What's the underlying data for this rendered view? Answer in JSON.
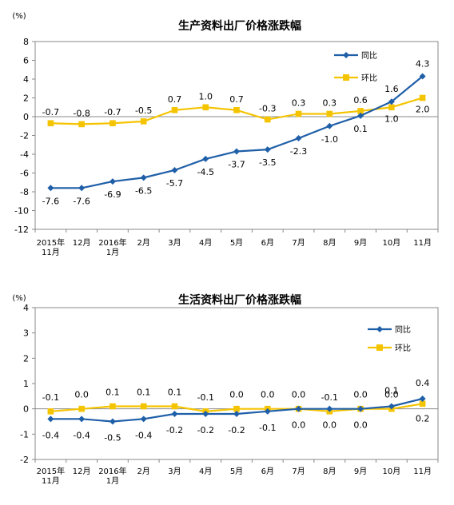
{
  "chart_data": [
    {
      "type": "line",
      "title": "生产资料出厂价格涨跌幅",
      "ylabel": "(%)",
      "ylim": [
        -12,
        8
      ],
      "yticks": [
        8,
        6,
        4,
        2,
        0,
        -2,
        -4,
        -6,
        -8,
        -10,
        -12
      ],
      "categories": [
        [
          "2015年",
          "11月"
        ],
        [
          "12月"
        ],
        [
          "2016年",
          "1月"
        ],
        [
          "2月"
        ],
        [
          "3月"
        ],
        [
          "4月"
        ],
        [
          "5月"
        ],
        [
          "6月"
        ],
        [
          "7月"
        ],
        [
          "8月"
        ],
        [
          "9月"
        ],
        [
          "10月"
        ],
        [
          "11月"
        ]
      ],
      "series": [
        {
          "name": "同比",
          "color": "#1f5fa8",
          "marker": "diamond",
          "values": [
            -7.6,
            -7.6,
            -6.9,
            -6.5,
            -5.7,
            -4.5,
            -3.7,
            -3.5,
            -2.3,
            -1.0,
            0.1,
            1.6,
            4.3
          ],
          "labels": [
            "-7.6",
            "-7.6",
            "-6.9",
            "-6.5",
            "-5.7",
            "-4.5",
            "-3.7",
            "-3.5",
            "-2.3",
            "-1.0",
            "0.1",
            "1.6",
            "4.3"
          ]
        },
        {
          "name": "环比",
          "color": "#f5c400",
          "marker": "square",
          "values": [
            -0.7,
            -0.8,
            -0.7,
            -0.5,
            0.7,
            1.0,
            0.7,
            -0.3,
            0.3,
            0.3,
            0.6,
            1.0,
            2.0
          ],
          "labels": [
            "-0.7",
            "-0.8",
            "-0.7",
            "-0.5",
            "0.7",
            "1.0",
            "0.7",
            "-0.3",
            "0.3",
            "0.3",
            "0.6",
            "1.0",
            "2.0"
          ]
        }
      ],
      "legend": "top-right",
      "grid": false
    },
    {
      "type": "line",
      "title": "生活资料出厂价格涨跌幅",
      "ylabel": "(%)",
      "ylim": [
        -2,
        4
      ],
      "yticks": [
        4,
        3,
        2,
        1,
        0,
        -1,
        -2
      ],
      "categories": [
        [
          "2015年",
          "11月"
        ],
        [
          "12月"
        ],
        [
          "2016年",
          "1月"
        ],
        [
          "2月"
        ],
        [
          "3月"
        ],
        [
          "4月"
        ],
        [
          "5月"
        ],
        [
          "6月"
        ],
        [
          "7月"
        ],
        [
          "8月"
        ],
        [
          "9月"
        ],
        [
          "10月"
        ],
        [
          "11月"
        ]
      ],
      "series": [
        {
          "name": "同比",
          "color": "#1f5fa8",
          "marker": "diamond",
          "values": [
            -0.4,
            -0.4,
            -0.5,
            -0.4,
            -0.2,
            -0.2,
            -0.2,
            -0.1,
            0.0,
            0.0,
            0.0,
            0.1,
            0.4
          ],
          "labels": [
            "-0.4",
            "-0.4",
            "-0.5",
            "-0.4",
            "-0.2",
            "-0.2",
            "-0.2",
            "-0.1",
            "0.0",
            "0.0",
            "0.0",
            "0.1",
            "0.4"
          ]
        },
        {
          "name": "环比",
          "color": "#f5c400",
          "marker": "square",
          "values": [
            -0.1,
            0.0,
            0.1,
            0.1,
            0.1,
            -0.1,
            0.0,
            0.0,
            0.0,
            -0.1,
            0.0,
            0.0,
            0.2
          ],
          "labels": [
            "-0.1",
            "0.0",
            "0.1",
            "0.1",
            "0.1",
            "-0.1",
            "0.0",
            "0.0",
            "0.0",
            "-0.1",
            "0.0",
            "0.0",
            "0.2"
          ]
        }
      ],
      "legend": "top-right",
      "grid": false
    }
  ]
}
